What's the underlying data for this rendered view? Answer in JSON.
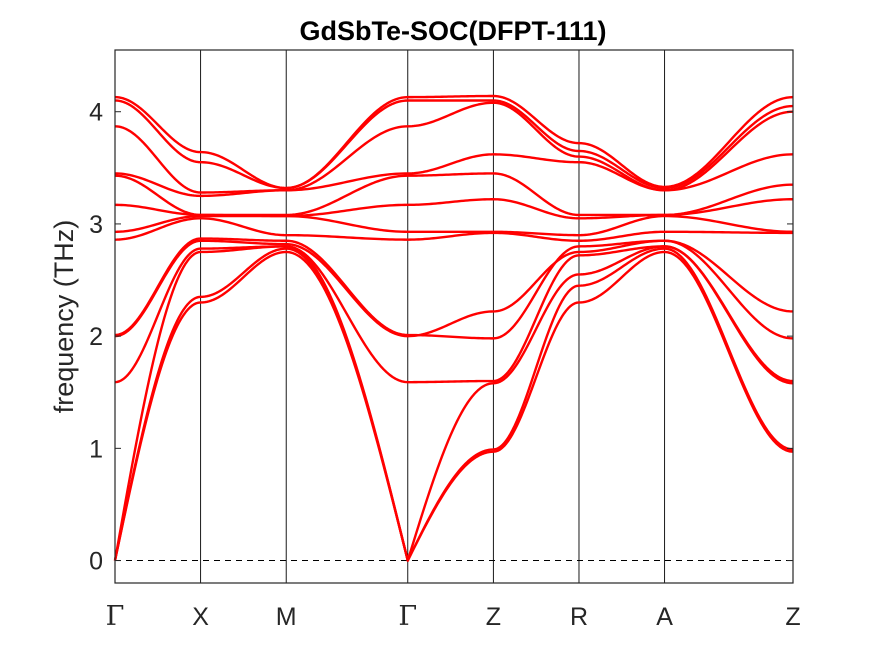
{
  "chart_data": {
    "type": "line",
    "title": "GdSbTe-SOC(DFPT-111)",
    "xlabel": "",
    "ylabel": "frequency (THz)",
    "ylim": [
      -0.2,
      4.55
    ],
    "xlim": [
      0,
      7.92
    ],
    "y_ticks": [
      0,
      1,
      2,
      3,
      4
    ],
    "high_symmetry_points": [
      {
        "label": "Γ",
        "x": 0.0
      },
      {
        "label": "X",
        "x": 1.0
      },
      {
        "label": "M",
        "x": 2.0
      },
      {
        "label": "Γ",
        "x": 3.42
      },
      {
        "label": "Z",
        "x": 4.42
      },
      {
        "label": "R",
        "x": 5.42
      },
      {
        "label": "A",
        "x": 6.42
      },
      {
        "label": "Z",
        "x": 7.92
      }
    ],
    "band_color": "#ff0000",
    "zero_line": {
      "y": 0,
      "style": "dashed"
    },
    "series": [
      {
        "values": [
          0.0,
          2.3,
          2.75,
          0.0,
          0.97,
          2.3,
          2.75,
          0.97
        ]
      },
      {
        "values": [
          0.0,
          2.35,
          2.78,
          0.0,
          0.99,
          2.45,
          2.78,
          0.99
        ]
      },
      {
        "values": [
          0.0,
          2.75,
          2.8,
          0.0,
          1.58,
          2.55,
          2.8,
          1.58
        ]
      },
      {
        "values": [
          1.59,
          2.78,
          2.8,
          1.59,
          1.6,
          2.72,
          2.8,
          1.6
        ]
      },
      {
        "values": [
          2.0,
          2.85,
          2.82,
          2.0,
          2.22,
          2.75,
          2.85,
          2.22
        ]
      },
      {
        "values": [
          2.01,
          2.87,
          2.85,
          2.01,
          1.98,
          2.8,
          2.85,
          1.98
        ]
      },
      {
        "values": [
          2.86,
          3.05,
          2.9,
          2.86,
          2.92,
          2.85,
          2.93,
          2.92
        ]
      },
      {
        "values": [
          2.93,
          3.07,
          3.07,
          2.93,
          2.93,
          2.9,
          3.07,
          2.93
        ]
      },
      {
        "values": [
          3.17,
          3.08,
          3.07,
          3.17,
          3.22,
          3.05,
          3.08,
          3.22
        ]
      },
      {
        "values": [
          3.43,
          3.08,
          3.08,
          3.43,
          3.45,
          3.08,
          3.08,
          3.35
        ]
      },
      {
        "values": [
          3.45,
          3.25,
          3.3,
          3.45,
          3.62,
          3.55,
          3.3,
          3.62
        ]
      },
      {
        "values": [
          3.87,
          3.28,
          3.3,
          3.87,
          4.08,
          3.6,
          3.3,
          4.0
        ]
      },
      {
        "values": [
          4.1,
          3.55,
          3.32,
          4.1,
          4.1,
          3.65,
          3.32,
          4.05
        ]
      },
      {
        "values": [
          4.13,
          3.64,
          3.32,
          4.13,
          4.14,
          3.72,
          3.33,
          4.13
        ]
      }
    ]
  }
}
